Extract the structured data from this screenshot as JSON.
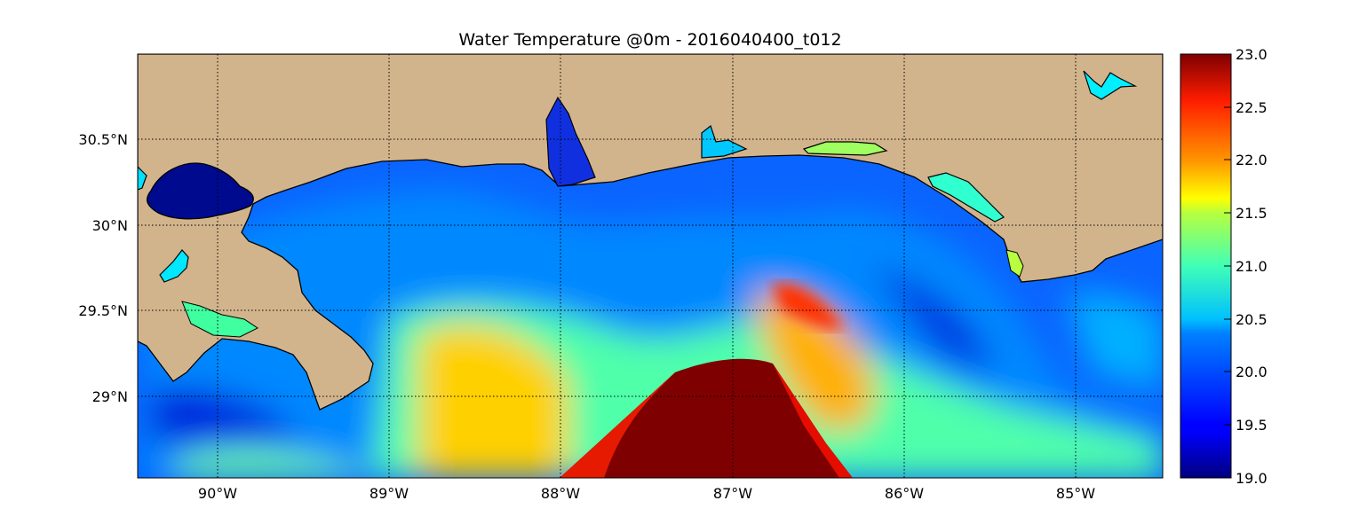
{
  "title": "Water Temperature @0m - 2016040400_t012",
  "map": {
    "lon_range": [
      -90.5,
      -84.5
    ],
    "lat_range": [
      28.55,
      31.0
    ],
    "land_color": "#d2b48c",
    "grid": true,
    "grid_style": "dotted",
    "lon_ticks": [
      "90°W",
      "89°W",
      "88°W",
      "87°W",
      "86°W",
      "85°W"
    ],
    "lat_ticks": [
      "30.5°N",
      "30°N",
      "29.5°N",
      "29°N"
    ]
  },
  "colorbar": {
    "colormap": "jet",
    "min": 19.0,
    "max": 23.0,
    "ticks": [
      "19.0",
      "19.5",
      "20.0",
      "20.5",
      "21.0",
      "21.5",
      "22.0",
      "22.5",
      "23.0"
    ],
    "placement": "right"
  }
}
